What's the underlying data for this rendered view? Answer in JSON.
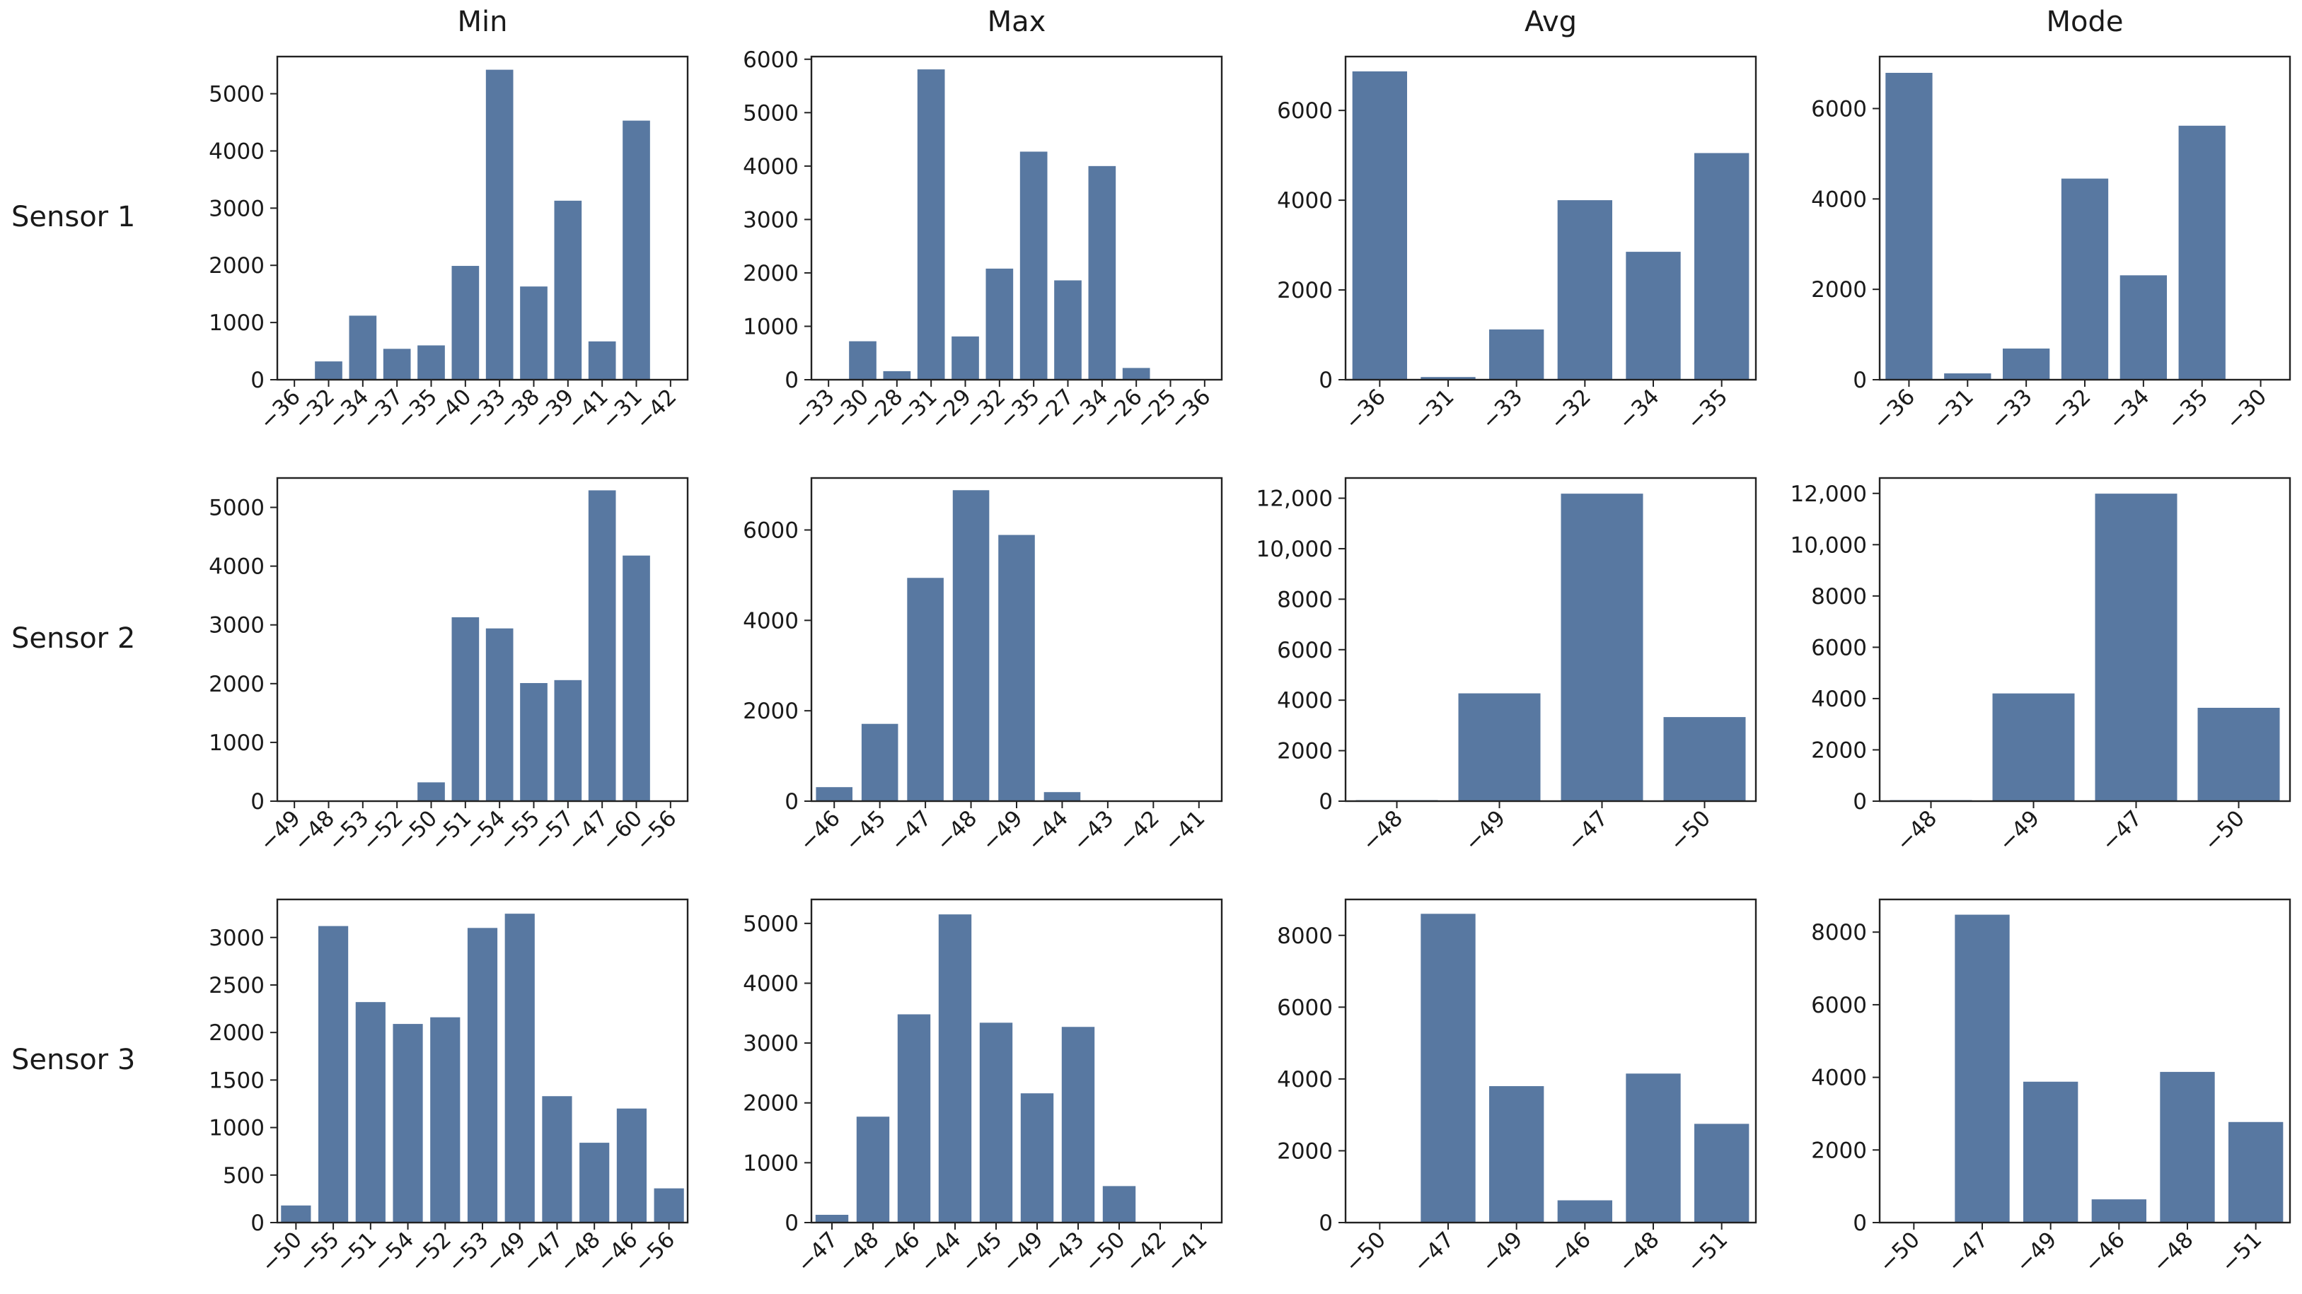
{
  "figure": {
    "column_titles": [
      "Min",
      "Max",
      "Avg",
      "Mode"
    ],
    "row_labels": [
      "Sensor 1",
      "Sensor 2",
      "Sensor 3"
    ],
    "bar_color": "#5878a1"
  },
  "chart_data": [
    {
      "type": "bar",
      "row": 0,
      "col": 0,
      "title": "Min",
      "row_label": "Sensor 1",
      "categories": [
        "−36",
        "−32",
        "−34",
        "−37",
        "−35",
        "−40",
        "−33",
        "−38",
        "−39",
        "−41",
        "−31",
        "−42"
      ],
      "values": [
        0,
        320,
        1120,
        540,
        600,
        1990,
        5420,
        1630,
        3130,
        670,
        4530,
        0
      ],
      "yticks": [
        0,
        1000,
        2000,
        3000,
        4000,
        5000
      ],
      "ytick_labels": [
        "0",
        "1000",
        "2000",
        "3000",
        "4000",
        "5000"
      ],
      "ylim": [
        0,
        5650
      ],
      "xlabel": "",
      "ylabel": ""
    },
    {
      "type": "bar",
      "row": 0,
      "col": 1,
      "title": "Max",
      "row_label": "Sensor 1",
      "categories": [
        "−33",
        "−30",
        "−28",
        "−31",
        "−29",
        "−32",
        "−35",
        "−27",
        "−34",
        "−26",
        "−25",
        "−36"
      ],
      "values": [
        0,
        720,
        160,
        5810,
        810,
        2080,
        4270,
        1860,
        4000,
        220,
        0,
        0
      ],
      "yticks": [
        0,
        1000,
        2000,
        3000,
        4000,
        5000,
        6000
      ],
      "ytick_labels": [
        "0",
        "1000",
        "2000",
        "3000",
        "4000",
        "5000",
        "6000"
      ],
      "ylim": [
        0,
        6050
      ],
      "xlabel": "",
      "ylabel": ""
    },
    {
      "type": "bar",
      "row": 0,
      "col": 2,
      "title": "Avg",
      "row_label": "Sensor 1",
      "categories": [
        "−36",
        "−31",
        "−33",
        "−32",
        "−34",
        "−35"
      ],
      "values": [
        6870,
        60,
        1120,
        4000,
        2850,
        5050
      ],
      "yticks": [
        0,
        2000,
        4000,
        6000
      ],
      "ytick_labels": [
        "0",
        "2000",
        "4000",
        "6000"
      ],
      "ylim": [
        0,
        7200
      ],
      "xlabel": "",
      "ylabel": ""
    },
    {
      "type": "bar",
      "row": 0,
      "col": 3,
      "title": "Mode",
      "row_label": "Sensor 1",
      "categories": [
        "−36",
        "−31",
        "−33",
        "−32",
        "−34",
        "−35",
        "−30"
      ],
      "values": [
        6790,
        140,
        690,
        4450,
        2310,
        5620,
        0
      ],
      "yticks": [
        0,
        2000,
        4000,
        6000
      ],
      "ytick_labels": [
        "0",
        "2000",
        "4000",
        "6000"
      ],
      "ylim": [
        0,
        7150
      ],
      "xlabel": "",
      "ylabel": ""
    },
    {
      "type": "bar",
      "row": 1,
      "col": 0,
      "title": "Min",
      "row_label": "Sensor 2",
      "categories": [
        "−49",
        "−48",
        "−53",
        "−52",
        "−50",
        "−51",
        "−54",
        "−55",
        "−57",
        "−47",
        "−60",
        "−56"
      ],
      "values": [
        0,
        0,
        0,
        0,
        320,
        3130,
        2940,
        2010,
        2060,
        5290,
        4180,
        0
      ],
      "yticks": [
        0,
        1000,
        2000,
        3000,
        4000,
        5000
      ],
      "ytick_labels": [
        "0",
        "1000",
        "2000",
        "3000",
        "4000",
        "5000"
      ],
      "ylim": [
        0,
        5500
      ],
      "xlabel": "",
      "ylabel": ""
    },
    {
      "type": "bar",
      "row": 1,
      "col": 1,
      "title": "Max",
      "row_label": "Sensor 2",
      "categories": [
        "−46",
        "−45",
        "−47",
        "−48",
        "−49",
        "−44",
        "−43",
        "−42",
        "−41"
      ],
      "values": [
        310,
        1710,
        4940,
        6880,
        5890,
        200,
        0,
        0,
        0
      ],
      "yticks": [
        0,
        2000,
        4000,
        6000
      ],
      "ytick_labels": [
        "0",
        "2000",
        "4000",
        "6000"
      ],
      "ylim": [
        0,
        7150
      ],
      "xlabel": "",
      "ylabel": ""
    },
    {
      "type": "bar",
      "row": 1,
      "col": 2,
      "title": "Avg",
      "row_label": "Sensor 2",
      "categories": [
        "−48",
        "−49",
        "−47",
        "−50"
      ],
      "values": [
        40,
        4270,
        12180,
        3330
      ],
      "yticks": [
        0,
        2000,
        4000,
        6000,
        8000,
        10000,
        12000
      ],
      "ytick_labels": [
        "0",
        "2000",
        "4000",
        "6000",
        "8000",
        "10,000",
        "12,000"
      ],
      "ylim": [
        0,
        12800
      ],
      "xlabel": "",
      "ylabel": ""
    },
    {
      "type": "bar",
      "row": 1,
      "col": 3,
      "title": "Mode",
      "row_label": "Sensor 2",
      "categories": [
        "−48",
        "−49",
        "−47",
        "−50"
      ],
      "values": [
        40,
        4200,
        11990,
        3640
      ],
      "yticks": [
        0,
        2000,
        4000,
        6000,
        8000,
        10000,
        12000
      ],
      "ytick_labels": [
        "0",
        "2000",
        "4000",
        "6000",
        "8000",
        "10,000",
        "12,000"
      ],
      "ylim": [
        0,
        12600
      ],
      "xlabel": "",
      "ylabel": ""
    },
    {
      "type": "bar",
      "row": 2,
      "col": 0,
      "title": "Min",
      "row_label": "Sensor 3",
      "categories": [
        "−50",
        "−55",
        "−51",
        "−54",
        "−52",
        "−53",
        "−49",
        "−47",
        "−48",
        "−46",
        "−56"
      ],
      "values": [
        180,
        3120,
        2320,
        2090,
        2160,
        3100,
        3250,
        1330,
        840,
        1200,
        360
      ],
      "yticks": [
        0,
        500,
        1000,
        1500,
        2000,
        2500,
        3000
      ],
      "ytick_labels": [
        "0",
        "500",
        "1000",
        "1500",
        "2000",
        "2500",
        "3000"
      ],
      "ylim": [
        0,
        3400
      ],
      "xlabel": "",
      "ylabel": ""
    },
    {
      "type": "bar",
      "row": 2,
      "col": 1,
      "title": "Max",
      "row_label": "Sensor 3",
      "categories": [
        "−47",
        "−48",
        "−46",
        "−44",
        "−45",
        "−49",
        "−43",
        "−50",
        "−42",
        "−41"
      ],
      "values": [
        130,
        1770,
        3480,
        5150,
        3340,
        2160,
        3270,
        610,
        0,
        0
      ],
      "yticks": [
        0,
        1000,
        2000,
        3000,
        4000,
        5000
      ],
      "ytick_labels": [
        "0",
        "1000",
        "2000",
        "3000",
        "4000",
        "5000"
      ],
      "ylim": [
        0,
        5400
      ],
      "xlabel": "",
      "ylabel": ""
    },
    {
      "type": "bar",
      "row": 2,
      "col": 2,
      "title": "Avg",
      "row_label": "Sensor 3",
      "categories": [
        "−50",
        "−47",
        "−49",
        "−46",
        "−48",
        "−51"
      ],
      "values": [
        0,
        8600,
        3800,
        620,
        4150,
        2750
      ],
      "yticks": [
        0,
        2000,
        4000,
        6000,
        8000
      ],
      "ytick_labels": [
        "0",
        "2000",
        "4000",
        "6000",
        "8000"
      ],
      "ylim": [
        0,
        9000
      ],
      "xlabel": "",
      "ylabel": ""
    },
    {
      "type": "bar",
      "row": 2,
      "col": 3,
      "title": "Mode",
      "row_label": "Sensor 3",
      "categories": [
        "−50",
        "−47",
        "−49",
        "−46",
        "−48",
        "−51"
      ],
      "values": [
        0,
        8480,
        3880,
        640,
        4150,
        2770
      ],
      "yticks": [
        0,
        2000,
        4000,
        6000,
        8000
      ],
      "ytick_labels": [
        "0",
        "2000",
        "4000",
        "6000",
        "8000"
      ],
      "ylim": [
        0,
        8900
      ],
      "xlabel": "",
      "ylabel": ""
    }
  ]
}
